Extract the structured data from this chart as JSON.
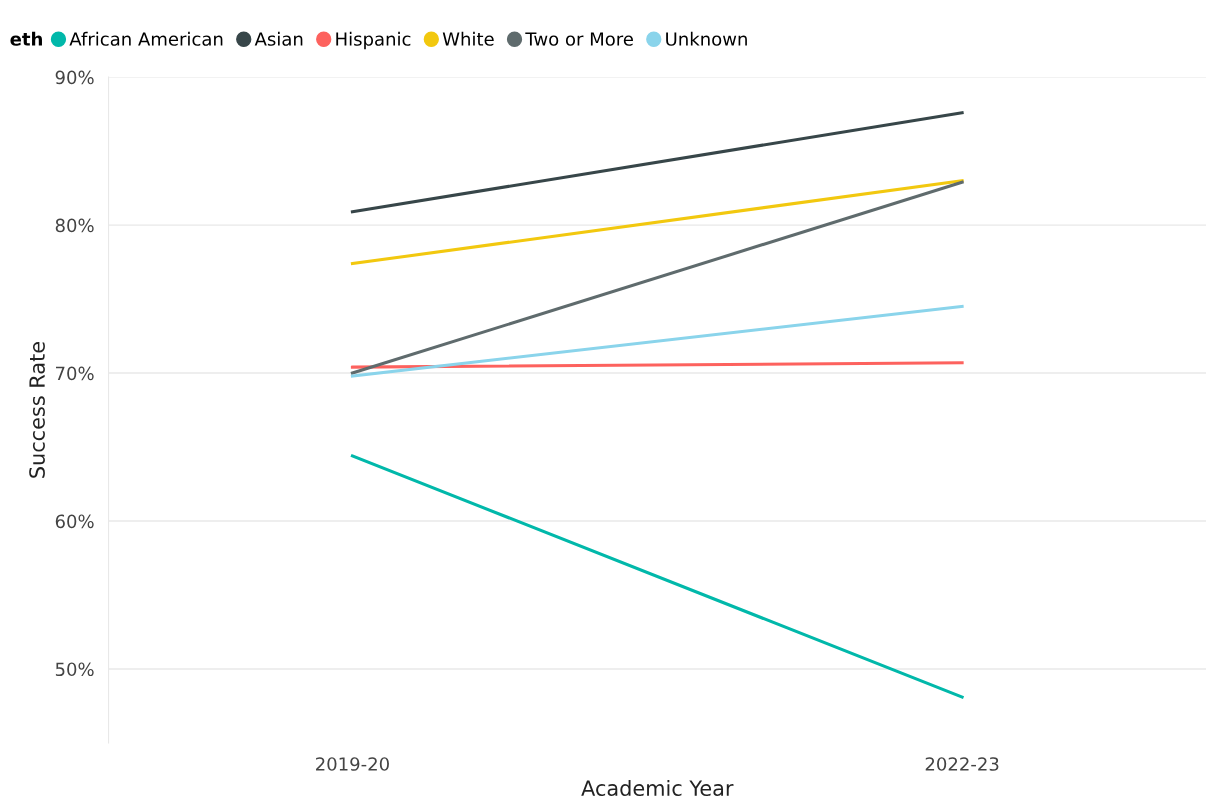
{
  "chart_data": {
    "type": "line",
    "categories": [
      "2019-20",
      "2022-23"
    ],
    "xlabel": "Academic Year",
    "ylabel": "Success Rate",
    "legend_title": "eth",
    "series": [
      {
        "name": "African American",
        "color": "#01b8aa",
        "values": [
          64.4,
          48.1
        ]
      },
      {
        "name": "Asian",
        "color": "#374649",
        "values": [
          80.9,
          87.6
        ]
      },
      {
        "name": "Hispanic",
        "color": "#fd625e",
        "values": [
          70.4,
          70.7
        ]
      },
      {
        "name": "White",
        "color": "#f2c80f",
        "values": [
          77.4,
          83.0
        ]
      },
      {
        "name": "Two or More",
        "color": "#5f6b6d",
        "values": [
          70.0,
          82.9
        ]
      },
      {
        "name": "Unknown",
        "color": "#8ad4eb",
        "values": [
          69.8,
          74.5
        ]
      }
    ],
    "ylim": [
      45,
      90
    ],
    "yticks": [
      {
        "value": 50,
        "label": "50%"
      },
      {
        "value": 60,
        "label": "60%"
      },
      {
        "value": 70,
        "label": "70%"
      },
      {
        "value": 80,
        "label": "80%"
      },
      {
        "value": 90,
        "label": "90%"
      }
    ],
    "grid": "y",
    "legend": "top left"
  }
}
